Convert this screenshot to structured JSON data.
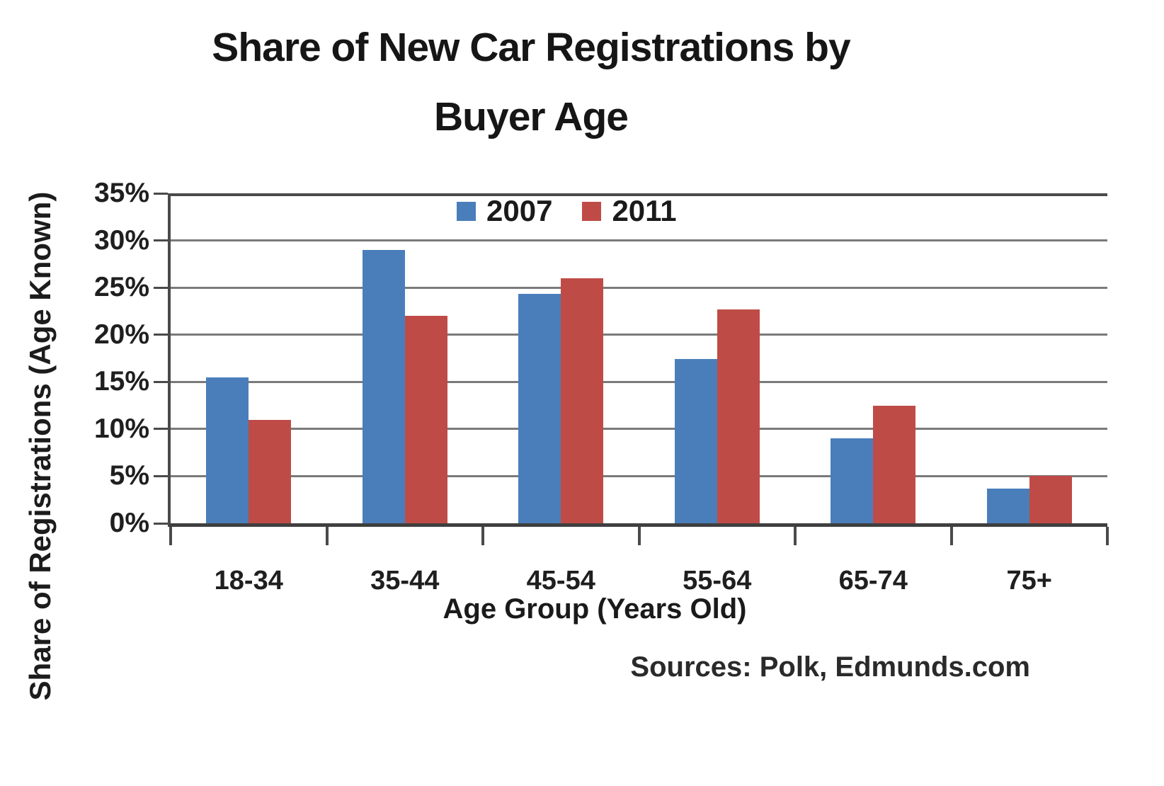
{
  "chart_data": {
    "type": "bar",
    "title": "Share of New Car Registrations by Buyer Age",
    "title_lines": [
      "Share of New Car Registrations by",
      "Buyer Age"
    ],
    "xlabel": "Age Group (Years Old)",
    "ylabel": "Share of Registrations (Age Known)",
    "source_note": "Sources: Polk, Edmunds.com",
    "categories": [
      "18-34",
      "35-44",
      "45-54",
      "55-64",
      "65-74",
      "75+"
    ],
    "series": [
      {
        "name": "2007",
        "color": "#4a7ebb",
        "values": [
          15.5,
          29,
          24.3,
          17.4,
          9,
          3.7
        ]
      },
      {
        "name": "2011",
        "color": "#bf4b47",
        "values": [
          11,
          22,
          26,
          22.7,
          12.5,
          5
        ]
      }
    ],
    "ylim": [
      0,
      35
    ],
    "ytick_step": 5,
    "ytick_labels": [
      "0%",
      "5%",
      "10%",
      "15%",
      "20%",
      "25%",
      "30%",
      "35%"
    ],
    "grid": true,
    "legend_position": "top-center",
    "colors": {
      "gridline": "#7a7a7a",
      "axis": "#4a4a4a",
      "text": "#1c1c1c",
      "background": "#ffffff"
    }
  }
}
